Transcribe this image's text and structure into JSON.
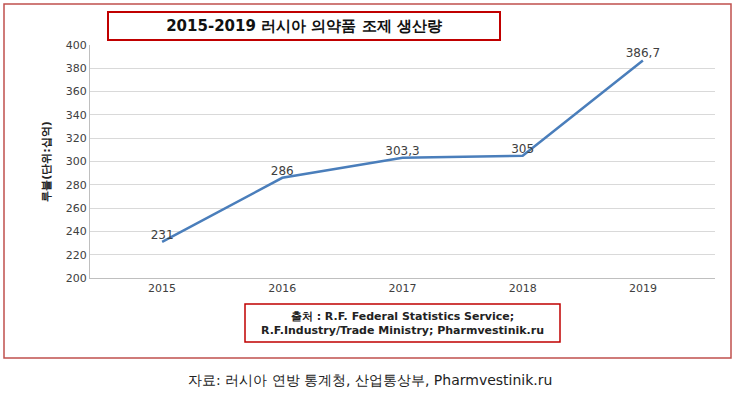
{
  "chart_data": {
    "type": "line",
    "title": "2015-2019 러시아 의약품 조제 생산량",
    "y_label": "루블(단위:십억)",
    "categories": [
      "2015",
      "2016",
      "2017",
      "2018",
      "2019"
    ],
    "values": [
      231,
      286,
      303.3,
      305,
      386.7
    ],
    "value_labels": [
      "231",
      "286",
      "303,3",
      "305",
      "386,7"
    ],
    "data_labels": true,
    "color": "#4a7ebb",
    "marker": "none",
    "ylim": [
      200,
      400
    ],
    "yticks": [
      200,
      220,
      240,
      260,
      280,
      300,
      320,
      340,
      360,
      380,
      400
    ],
    "grid": true,
    "annotations": [
      "출처 : R.F. Federal Statistics Service;",
      "R.F.Industry/Trade Ministry; Pharmvestinik.ru"
    ],
    "caption": "자료: 러시아 연방 통계청, 산업통상부, Pharmvestinik.ru"
  }
}
